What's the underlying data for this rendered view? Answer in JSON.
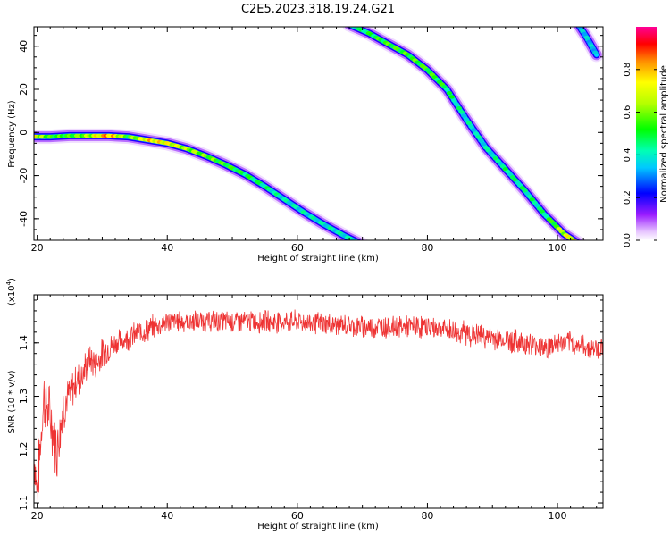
{
  "title": "C2E5.2023.318.19.24.G21",
  "chart_data": [
    {
      "type": "heatmap",
      "xlabel": "Height of straight line (km)",
      "ylabel": "Frequency (Hz)",
      "xlim": [
        19.5,
        107
      ],
      "ylim": [
        -50,
        49
      ],
      "x_ticks": [
        20,
        40,
        60,
        80,
        100
      ],
      "y_ticks": [
        -40,
        -20,
        0,
        20,
        40
      ],
      "colorbar": {
        "label": "Normalized spectral amplitude",
        "range": [
          0,
          1
        ],
        "ticks": [
          "0.0",
          "0.2",
          "0.4",
          "0.6",
          "0.8"
        ],
        "tick_values": [
          0,
          0.2,
          0.4,
          0.6,
          0.8
        ]
      },
      "series": [
        {
          "x": [
            19.5,
            22,
            25,
            28,
            31,
            34,
            37,
            40,
            43,
            46,
            49,
            52,
            55,
            58,
            61,
            64,
            67,
            70
          ],
          "y": [
            -2,
            -2,
            -1.5,
            -1.5,
            -1.5,
            -2,
            -3.5,
            -5,
            -7.5,
            -11,
            -15,
            -19.5,
            -25,
            -31,
            -37,
            -42.5,
            -47.5,
            -52
          ],
          "amplitude": [
            0.8,
            0.6,
            0.6,
            0.7,
            0.95,
            0.6,
            0.85,
            0.8,
            0.7,
            0.65,
            0.6,
            0.55,
            0.5,
            0.45,
            0.45,
            0.45,
            0.45,
            0.45
          ]
        },
        {
          "x": [
            68,
            71,
            74,
            77,
            80,
            83,
            86,
            89,
            92,
            95,
            98,
            101,
            103.5
          ],
          "y": [
            50,
            46,
            41,
            36,
            29,
            20,
            6,
            -7,
            -17,
            -27,
            -38,
            -47,
            -52
          ],
          "amplitude": [
            0.45,
            0.55,
            0.6,
            0.6,
            0.6,
            0.55,
            0.45,
            0.45,
            0.5,
            0.5,
            0.5,
            0.75,
            0.85
          ]
        },
        {
          "x": [
            103,
            104.5,
            106
          ],
          "y": [
            51,
            44,
            36
          ],
          "amplitude": [
            0.4,
            0.4,
            0.4
          ]
        }
      ]
    },
    {
      "type": "line",
      "xlabel": "Height of straight line (km)",
      "ylabel": "SNR (10 * v/v)",
      "y_scale_label": "(x10",
      "y_scale_exponent": "4",
      "y_scale_close": ")",
      "xlim": [
        19.5,
        107
      ],
      "ylim": [
        1.09,
        1.49
      ],
      "x_ticks": [
        20,
        40,
        60,
        80,
        100
      ],
      "y_ticks": [
        1.1,
        1.2,
        1.3,
        1.4
      ],
      "y_tick_labels": [
        "1.1",
        "1.2",
        "1.3",
        "1.4"
      ],
      "color": "#ee3333",
      "series": [
        {
          "x": [
            19.5,
            20,
            21,
            22,
            23,
            24,
            25,
            26,
            27,
            28,
            29,
            30,
            32,
            34,
            36,
            38,
            40,
            45,
            50,
            55,
            60,
            65,
            70,
            75,
            80,
            85,
            90,
            95,
            98.5,
            100,
            102,
            105,
            107
          ],
          "y": [
            1.2,
            1.12,
            1.3,
            1.26,
            1.2,
            1.28,
            1.3,
            1.33,
            1.34,
            1.37,
            1.36,
            1.38,
            1.4,
            1.41,
            1.42,
            1.43,
            1.44,
            1.44,
            1.44,
            1.44,
            1.44,
            1.435,
            1.43,
            1.43,
            1.43,
            1.42,
            1.41,
            1.4,
            1.39,
            1.4,
            1.4,
            1.39,
            1.39
          ],
          "noise": [
            0.06,
            0.06,
            0.05,
            0.05,
            0.05,
            0.04,
            0.035,
            0.03,
            0.03,
            0.025,
            0.025,
            0.025,
            0.02,
            0.02,
            0.02,
            0.02,
            0.018,
            0.018,
            0.018,
            0.018,
            0.018,
            0.018,
            0.018,
            0.018,
            0.018,
            0.02,
            0.02,
            0.02,
            0.02,
            0.02,
            0.018,
            0.018,
            0.018
          ]
        }
      ]
    }
  ]
}
